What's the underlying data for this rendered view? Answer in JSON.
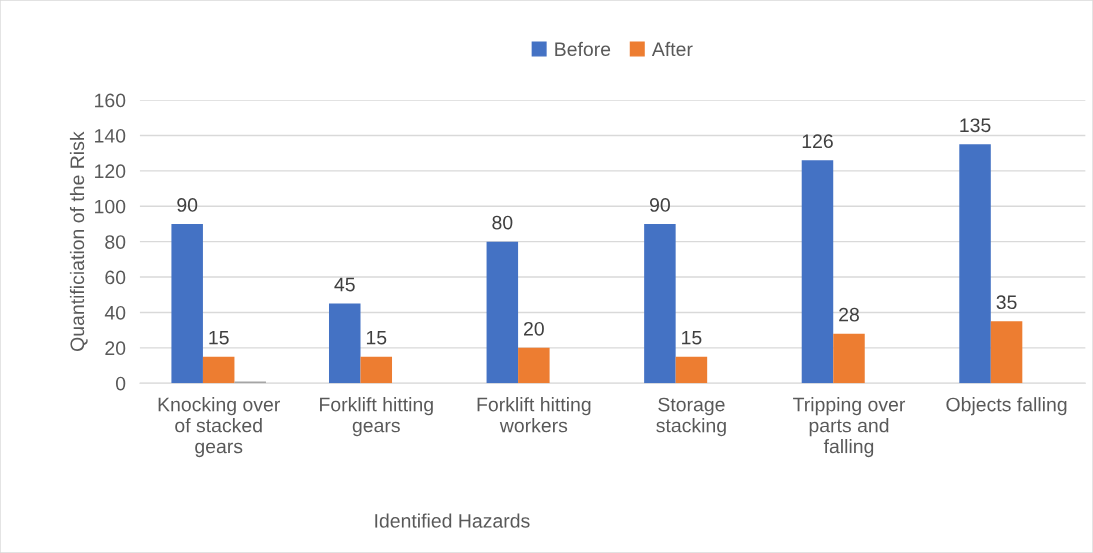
{
  "chart_data": {
    "type": "bar",
    "xlabel": "Identified Hazards",
    "ylabel": "Quantificiation of the Risk",
    "categories": [
      "Knocking over\nof stacked\ngears",
      "Forklift hitting\ngears",
      "Forklift hitting\nworkers",
      "Storage\nstacking",
      "Tripping over\nparts and\nfalling",
      "Objects falling"
    ],
    "series": [
      {
        "name": "Before",
        "color": "#4472c4",
        "values": [
          90,
          45,
          80,
          90,
          126,
          135
        ]
      },
      {
        "name": "After",
        "color": "#ed7d31",
        "values": [
          15,
          15,
          20,
          15,
          28,
          35
        ]
      },
      {
        "color": "#a5a5a5",
        "values": [
          1,
          null,
          null,
          null,
          null,
          null
        ],
        "value_labels": [
          null,
          null,
          null,
          null,
          null,
          null
        ]
      }
    ],
    "ylim": [
      0,
      160
    ],
    "yticks": [
      0,
      20,
      40,
      60,
      80,
      100,
      120,
      140,
      160
    ],
    "grid": "y",
    "legend": "top",
    "data_labels": true
  }
}
